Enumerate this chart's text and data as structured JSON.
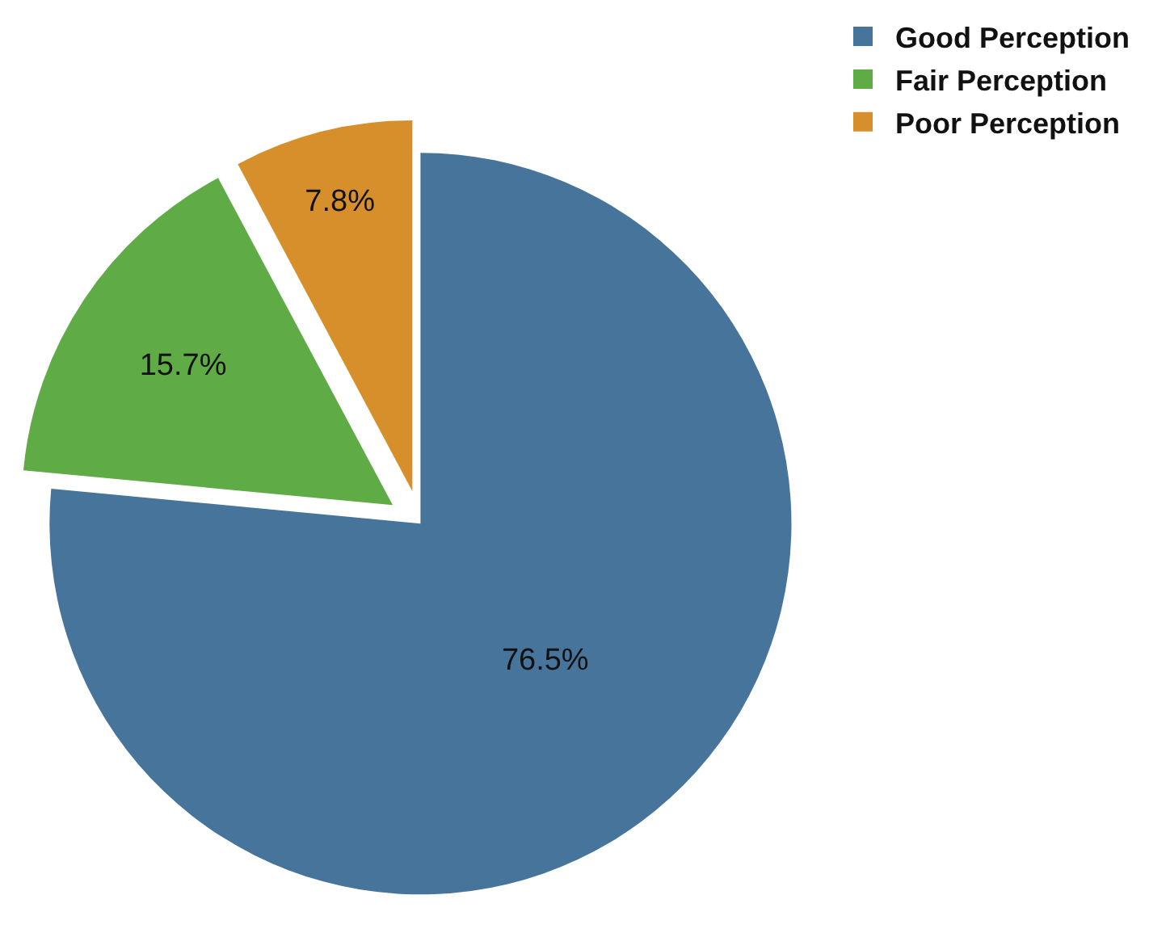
{
  "chart_data": {
    "type": "pie",
    "categories": [
      "Good Perception",
      "Fair Perception",
      "Poor Perception"
    ],
    "values": [
      76.5,
      15.7,
      7.8
    ],
    "colors": [
      "#47749a",
      "#5fab46",
      "#d68f2b"
    ],
    "value_labels": [
      "76.5%",
      "15.7%",
      "7.8%"
    ],
    "legend": "top right"
  }
}
